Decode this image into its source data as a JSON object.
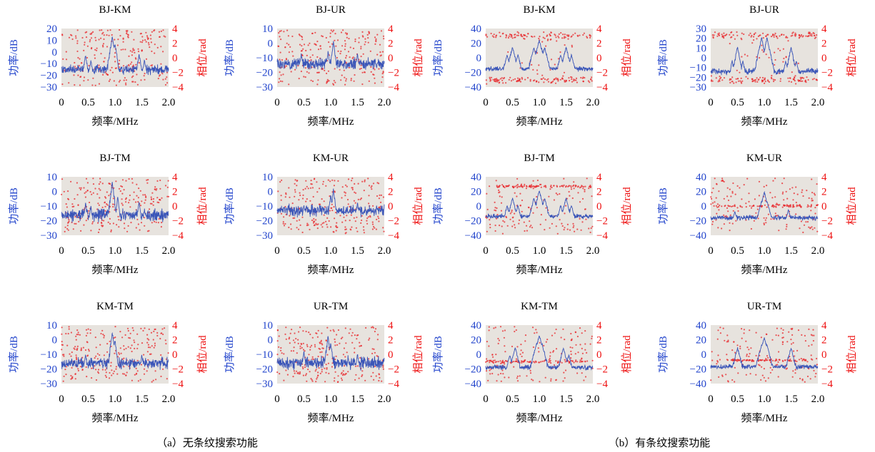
{
  "chart_data": [
    {
      "type": "line",
      "group": "a",
      "title": "BJ-KM",
      "xlabel": "频率/MHz",
      "ylabel_left": "功率/dB",
      "ylabel_right": "相位/rad",
      "xlim": [
        0,
        2.0
      ],
      "x_ticks": [
        "0",
        "0.5",
        "1.0",
        "1.5",
        "2.0"
      ],
      "ylim_left": [
        -30,
        20
      ],
      "y_ticks_left": [
        "20",
        "10",
        "0",
        "−10",
        "−20",
        "−30"
      ],
      "ylim_right": [
        -4,
        4
      ],
      "y_ticks_right": [
        "4",
        "2",
        "0",
        "−2",
        "−4"
      ],
      "series": [],
      "baseline_db": -15,
      "noise_db": 3,
      "peaks": [
        {
          "x": 0.45,
          "y": -2
        },
        {
          "x": 0.55,
          "y": -6
        },
        {
          "x": 0.95,
          "y": 14
        },
        {
          "x": 1.0,
          "y": 8
        },
        {
          "x": 1.45,
          "y": -1
        },
        {
          "x": 1.55,
          "y": -6
        }
      ],
      "phase_mode": "scatter",
      "grid": false
    },
    {
      "type": "line",
      "group": "a",
      "title": "BJ-UR",
      "xlabel": "频率/MHz",
      "ylabel_left": "功率/dB",
      "ylabel_right": "相位/rad",
      "xlim": [
        0,
        2.0
      ],
      "x_ticks": [
        "0",
        "0.5",
        "1.0",
        "1.5",
        "2.0"
      ],
      "ylim_left": [
        -30,
        10
      ],
      "y_ticks_left": [
        "10",
        "0",
        "−10",
        "−20",
        "−30"
      ],
      "ylim_right": [
        -4,
        4
      ],
      "y_ticks_right": [
        "4",
        "2",
        "0",
        "−2",
        "−4"
      ],
      "series": [],
      "baseline_db": -14,
      "noise_db": 3,
      "peaks": [
        {
          "x": 0.45,
          "y": -6
        },
        {
          "x": 0.95,
          "y": -5
        },
        {
          "x": 1.05,
          "y": 2
        },
        {
          "x": 1.5,
          "y": -6
        }
      ],
      "phase_mode": "scatter",
      "grid": false
    },
    {
      "type": "line",
      "group": "b",
      "title": "BJ-KM",
      "xlabel": "频率/MHz",
      "ylabel_left": "功率/dB",
      "ylabel_right": "相位/rad",
      "xlim": [
        0,
        2.0
      ],
      "x_ticks": [
        "0",
        "0.5",
        "1.0",
        "1.5",
        "2.0"
      ],
      "ylim_left": [
        -40,
        40
      ],
      "y_ticks_left": [
        "40",
        "20",
        "0",
        "−20",
        "−40"
      ],
      "ylim_right": [
        -4,
        4
      ],
      "y_ticks_right": [
        "4",
        "2",
        "0",
        "−2",
        "−4"
      ],
      "series": [],
      "baseline_db": -15,
      "noise_db": 2.5,
      "peaks": [
        {
          "x": 0.4,
          "y": 5
        },
        {
          "x": 0.5,
          "y": 15
        },
        {
          "x": 0.6,
          "y": 5
        },
        {
          "x": 0.9,
          "y": 15
        },
        {
          "x": 1.0,
          "y": 25
        },
        {
          "x": 1.1,
          "y": 15
        },
        {
          "x": 1.4,
          "y": 5
        },
        {
          "x": 1.5,
          "y": 15
        },
        {
          "x": 1.6,
          "y": 5
        }
      ],
      "phase_mode": "pi",
      "grid": false
    },
    {
      "type": "line",
      "group": "b",
      "title": "BJ-UR",
      "xlabel": "频率/MHz",
      "ylabel_left": "功率/dB",
      "ylabel_right": "相位/rad",
      "xlim": [
        0,
        2.0
      ],
      "x_ticks": [
        "0",
        "0.5",
        "1.0",
        "1.5",
        "2.0"
      ],
      "ylim_left": [
        -30,
        30
      ],
      "y_ticks_left": [
        "30",
        "20",
        "10",
        "0",
        "−10",
        "−20",
        "−30"
      ],
      "ylim_right": [
        -4,
        4
      ],
      "y_ticks_right": [
        "4",
        "2",
        "0",
        "−2",
        "−4"
      ],
      "series": [],
      "baseline_db": -14,
      "noise_db": 2.5,
      "peaks": [
        {
          "x": 0.4,
          "y": -2
        },
        {
          "x": 0.5,
          "y": 12
        },
        {
          "x": 0.6,
          "y": -2
        },
        {
          "x": 0.9,
          "y": 10
        },
        {
          "x": 0.95,
          "y": 22
        },
        {
          "x": 1.05,
          "y": 22
        },
        {
          "x": 1.1,
          "y": 10
        },
        {
          "x": 1.4,
          "y": -2
        },
        {
          "x": 1.5,
          "y": 12
        },
        {
          "x": 1.6,
          "y": -2
        }
      ],
      "phase_mode": "pi",
      "grid": false
    },
    {
      "type": "line",
      "group": "a",
      "title": "BJ-TM",
      "xlabel": "频率/MHz",
      "ylabel_left": "功率/dB",
      "ylabel_right": "相位/rad",
      "xlim": [
        0,
        2.0
      ],
      "x_ticks": [
        "0",
        "0.5",
        "1.0",
        "1.5",
        "2.0"
      ],
      "ylim_left": [
        -30,
        10
      ],
      "y_ticks_left": [
        "10",
        "0",
        "−10",
        "−20",
        "−30"
      ],
      "ylim_right": [
        -4,
        4
      ],
      "y_ticks_right": [
        "4",
        "2",
        "0",
        "−2",
        "−4"
      ],
      "series": [],
      "baseline_db": -16,
      "noise_db": 3.5,
      "peaks": [
        {
          "x": 0.45,
          "y": -7
        },
        {
          "x": 0.55,
          "y": -9
        },
        {
          "x": 0.95,
          "y": 7
        },
        {
          "x": 1.05,
          "y": -3
        },
        {
          "x": 1.45,
          "y": -6
        },
        {
          "x": 1.55,
          "y": -11
        }
      ],
      "phase_mode": "scatter",
      "grid": false
    },
    {
      "type": "line",
      "group": "a",
      "title": "KM-UR",
      "xlabel": "频率/MHz",
      "ylabel_left": "功率/dB",
      "ylabel_right": "相位/rad",
      "xlim": [
        0,
        2.0
      ],
      "x_ticks": [
        "0",
        "0.5",
        "1.0",
        "1.5",
        "2.0"
      ],
      "ylim_left": [
        -30,
        10
      ],
      "y_ticks_left": [
        "10",
        "0",
        "−10",
        "−20",
        "−30"
      ],
      "ylim_right": [
        -4,
        4
      ],
      "y_ticks_right": [
        "4",
        "2",
        "0",
        "−2",
        "−4"
      ],
      "series": [],
      "baseline_db": -13,
      "noise_db": 3,
      "peaks": [
        {
          "x": 0.5,
          "y": -8
        },
        {
          "x": 1.0,
          "y": -2
        },
        {
          "x": 1.05,
          "y": 2
        },
        {
          "x": 1.5,
          "y": -7
        }
      ],
      "phase_mode": "scatter",
      "grid": false
    },
    {
      "type": "line",
      "group": "b",
      "title": "BJ-TM",
      "xlabel": "频率/MHz",
      "ylabel_left": "功率/dB",
      "ylabel_right": "相位/rad",
      "xlim": [
        0,
        2.0
      ],
      "x_ticks": [
        "0",
        "0.5",
        "1.0",
        "1.5",
        "2.0"
      ],
      "ylim_left": [
        -40,
        40
      ],
      "y_ticks_left": [
        "40",
        "20",
        "0",
        "−20",
        "−40"
      ],
      "ylim_right": [
        -4,
        4
      ],
      "y_ticks_right": [
        "4",
        "2",
        "0",
        "−2",
        "−4"
      ],
      "series": [],
      "baseline_db": -14,
      "noise_db": 2.5,
      "peaks": [
        {
          "x": 0.4,
          "y": 2
        },
        {
          "x": 0.5,
          "y": 12
        },
        {
          "x": 0.6,
          "y": 2
        },
        {
          "x": 0.9,
          "y": 12
        },
        {
          "x": 1.0,
          "y": 22
        },
        {
          "x": 1.1,
          "y": 12
        },
        {
          "x": 1.4,
          "y": 2
        },
        {
          "x": 1.5,
          "y": 12
        },
        {
          "x": 1.6,
          "y": 2
        }
      ],
      "phase_mode": "band",
      "phase_level": 2.7,
      "grid": false
    },
    {
      "type": "line",
      "group": "b",
      "title": "KM-UR",
      "xlabel": "频率/MHz",
      "ylabel_left": "功率/dB",
      "ylabel_right": "相位/rad",
      "xlim": [
        0,
        2.0
      ],
      "x_ticks": [
        "0",
        "0.5",
        "1.0",
        "1.5",
        "2.0"
      ],
      "ylim_left": [
        -40,
        40
      ],
      "y_ticks_left": [
        "40",
        "20",
        "0",
        "−20",
        "−40"
      ],
      "ylim_right": [
        -4,
        4
      ],
      "y_ticks_right": [
        "4",
        "2",
        "0",
        "−2",
        "−4"
      ],
      "series": [],
      "baseline_db": -16,
      "noise_db": 2.5,
      "peaks": [
        {
          "x": 0.45,
          "y": -6
        },
        {
          "x": 0.95,
          "y": 8
        },
        {
          "x": 1.0,
          "y": 20
        },
        {
          "x": 1.05,
          "y": 8
        },
        {
          "x": 1.45,
          "y": -4
        }
      ],
      "phase_mode": "band",
      "phase_level": 0,
      "grid": false
    },
    {
      "type": "line",
      "group": "a",
      "title": "KM-TM",
      "xlabel": "频率/MHz",
      "ylabel_left": "功率/dB",
      "ylabel_right": "相位/rad",
      "xlim": [
        0,
        2.0
      ],
      "x_ticks": [
        "0",
        "0.5",
        "1.0",
        "1.5",
        "2.0"
      ],
      "ylim_left": [
        -30,
        10
      ],
      "y_ticks_left": [
        "10",
        "0",
        "−10",
        "−20",
        "−30"
      ],
      "ylim_right": [
        -4,
        4
      ],
      "y_ticks_right": [
        "4",
        "2",
        "0",
        "−2",
        "−4"
      ],
      "series": [],
      "baseline_db": -16,
      "noise_db": 3,
      "peaks": [
        {
          "x": 0.45,
          "y": -9
        },
        {
          "x": 0.95,
          "y": 6
        },
        {
          "x": 1.0,
          "y": 1
        },
        {
          "x": 1.5,
          "y": -9
        }
      ],
      "phase_mode": "scatter",
      "grid": false
    },
    {
      "type": "line",
      "group": "a",
      "title": "UR-TM",
      "xlabel": "频率/MHz",
      "ylabel_left": "功率/dB",
      "ylabel_right": "相位/rad",
      "xlim": [
        0,
        2.0
      ],
      "x_ticks": [
        "0",
        "0.5",
        "1.0",
        "1.5",
        "2.0"
      ],
      "ylim_left": [
        -30,
        10
      ],
      "y_ticks_left": [
        "10",
        "0",
        "−10",
        "−20",
        "−30"
      ],
      "ylim_right": [
        -4,
        4
      ],
      "y_ticks_right": [
        "4",
        "2",
        "0",
        "−2",
        "−4"
      ],
      "series": [],
      "baseline_db": -16,
      "noise_db": 3.5,
      "peaks": [
        {
          "x": 0.5,
          "y": -7
        },
        {
          "x": 0.95,
          "y": 3
        },
        {
          "x": 1.0,
          "y": -1
        },
        {
          "x": 1.5,
          "y": -8
        }
      ],
      "phase_mode": "scatter",
      "grid": false
    },
    {
      "type": "line",
      "group": "b",
      "title": "KM-TM",
      "xlabel": "频率/MHz",
      "ylabel_left": "功率/dB",
      "ylabel_right": "相位/rad",
      "xlim": [
        0,
        2.0
      ],
      "x_ticks": [
        "0",
        "0.5",
        "1.0",
        "1.5",
        "2.0"
      ],
      "ylim_left": [
        -40,
        40
      ],
      "y_ticks_left": [
        "40",
        "20",
        "0",
        "−20",
        "−40"
      ],
      "ylim_right": [
        -4,
        4
      ],
      "y_ticks_right": [
        "4",
        "2",
        "0",
        "−2",
        "−4"
      ],
      "series": [],
      "baseline_db": -18,
      "noise_db": 2.5,
      "peaks": [
        {
          "x": 0.45,
          "y": 0
        },
        {
          "x": 0.55,
          "y": 10
        },
        {
          "x": 0.95,
          "y": 16
        },
        {
          "x": 1.0,
          "y": 27
        },
        {
          "x": 1.05,
          "y": 16
        },
        {
          "x": 1.45,
          "y": 10
        },
        {
          "x": 1.55,
          "y": 0
        }
      ],
      "phase_mode": "band",
      "phase_level": -1,
      "grid": false
    },
    {
      "type": "line",
      "group": "b",
      "title": "UR-TM",
      "xlabel": "频率/MHz",
      "ylabel_left": "功率/dB",
      "ylabel_right": "相位/rad",
      "xlim": [
        0,
        2.0
      ],
      "x_ticks": [
        "0",
        "0.5",
        "1.0",
        "1.5",
        "2.0"
      ],
      "ylim_left": [
        -40,
        40
      ],
      "y_ticks_left": [
        "40",
        "20",
        "0",
        "−20",
        "−40"
      ],
      "ylim_right": [
        -4,
        4
      ],
      "y_ticks_right": [
        "4",
        "2",
        "0",
        "−2",
        "−4"
      ],
      "series": [],
      "baseline_db": -17,
      "noise_db": 2.5,
      "peaks": [
        {
          "x": 0.5,
          "y": 10
        },
        {
          "x": 0.95,
          "y": 14
        },
        {
          "x": 1.0,
          "y": 24
        },
        {
          "x": 1.05,
          "y": 14
        },
        {
          "x": 1.5,
          "y": 10
        }
      ],
      "phase_mode": "band",
      "phase_level": -0.8,
      "grid": false
    }
  ],
  "captions": {
    "a": "（a）无条纹搜索功能",
    "b": "（b）有条纹搜索功能"
  },
  "colors": {
    "power_line": "#3a55b8",
    "phase_marker": "#e8262a",
    "plot_bg": "#e7e3de",
    "left_axis_text": "#2244cc",
    "right_axis_text": "#ee1111"
  }
}
